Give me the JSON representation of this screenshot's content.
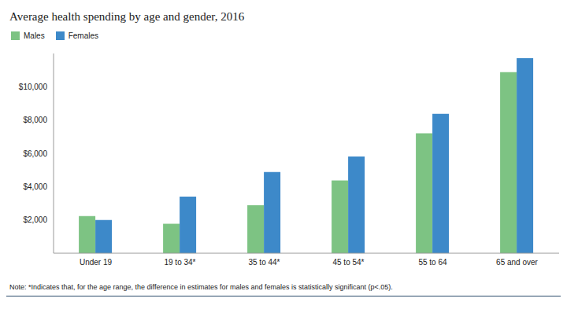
{
  "chart_data": {
    "type": "bar",
    "title": "Average health spending by age and gender, 2016",
    "categories": [
      "Under 19",
      "19 to 34*",
      "35 to 44*",
      "45 to 54*",
      "55 to 64",
      "65 and over"
    ],
    "series": [
      {
        "name": "Males",
        "color": "#7dc383",
        "values": [
          2230,
          1770,
          2880,
          4370,
          7210,
          10880
        ]
      },
      {
        "name": "Females",
        "color": "#3d89c9",
        "values": [
          2000,
          3400,
          4880,
          5810,
          8370,
          11720
        ]
      }
    ],
    "ylim": [
      0,
      12000
    ],
    "yticks": [
      {
        "value": 2000,
        "label": "$2,000"
      },
      {
        "value": 4000,
        "label": "$4,000"
      },
      {
        "value": 6000,
        "label": "$6,000"
      },
      {
        "value": 8000,
        "label": "$8,000"
      },
      {
        "value": 10000,
        "label": "$10,000"
      }
    ],
    "grid": false,
    "legend": "top-left",
    "note": "Note: *Indicates that, for the age range, the difference in estimates for males and females is statistically significant (p<.05)."
  }
}
